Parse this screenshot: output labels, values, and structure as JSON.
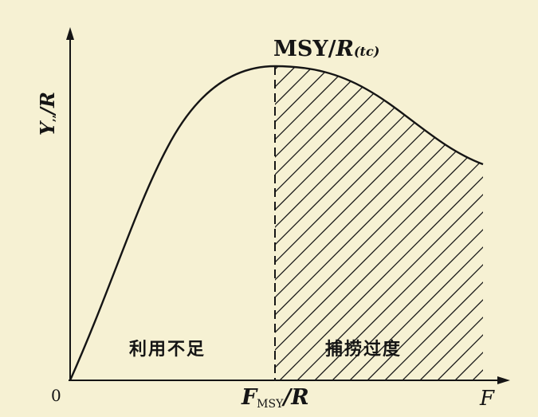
{
  "diagram": {
    "origin_label": "0",
    "x_axis_label": "F",
    "y_axis_label": {
      "main": "Y",
      "subscript": ",,",
      "rest": "/R"
    },
    "peak_label": {
      "prefix": "MSY/",
      "R": "R",
      "subscript": "(tc)"
    },
    "fmsy_label": {
      "F": "F",
      "subscript": "MSY",
      "rest": "/R"
    },
    "regions": {
      "left": "利用不足",
      "right": "捕捞过度"
    },
    "colors": {
      "background": "#f6f1d3",
      "ink": "#151515"
    }
  }
}
